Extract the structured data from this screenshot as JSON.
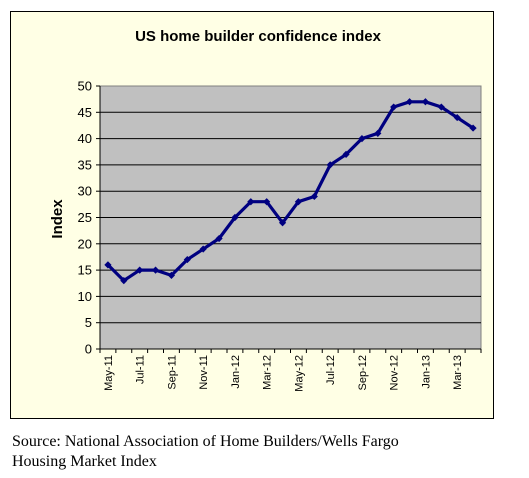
{
  "chart_data": {
    "type": "line",
    "title": "US home builder confidence index",
    "ylabel": "Index",
    "xlabel": "",
    "ylim": [
      0,
      50
    ],
    "yticks": [
      0,
      5,
      10,
      15,
      20,
      25,
      30,
      35,
      40,
      45,
      50
    ],
    "grid": "horizontal",
    "x_tick_labels": [
      "May-11",
      "Jul-11",
      "Sep-11",
      "Nov-11",
      "Jan-12",
      "Mar-12",
      "May-12",
      "Jul-12",
      "Sep-12",
      "Nov-12",
      "Jan-13",
      "Mar-13"
    ],
    "x": [
      "May-11",
      "Jun-11",
      "Jul-11",
      "Aug-11",
      "Sep-11",
      "Oct-11",
      "Nov-11",
      "Dec-11",
      "Jan-12",
      "Feb-12",
      "Mar-12",
      "Apr-12",
      "May-12",
      "Jun-12",
      "Jul-12",
      "Aug-12",
      "Sep-12",
      "Oct-12",
      "Nov-12",
      "Dec-12",
      "Jan-13",
      "Feb-13",
      "Mar-13",
      "Apr-13"
    ],
    "series": [
      {
        "values": [
          16,
          13,
          15,
          15,
          14,
          17,
          19,
          21,
          25,
          28,
          28,
          24,
          28,
          29,
          35,
          37,
          40,
          41,
          46,
          47,
          47,
          46,
          44,
          42
        ]
      }
    ],
    "colors": {
      "line": "#000080",
      "plot_background": "#c0c0c0",
      "chart_background": "#ffffe5"
    }
  },
  "source": {
    "line1": "Source: National Association of Home Builders/Wells Fargo",
    "line2": "Housing Market Index"
  }
}
